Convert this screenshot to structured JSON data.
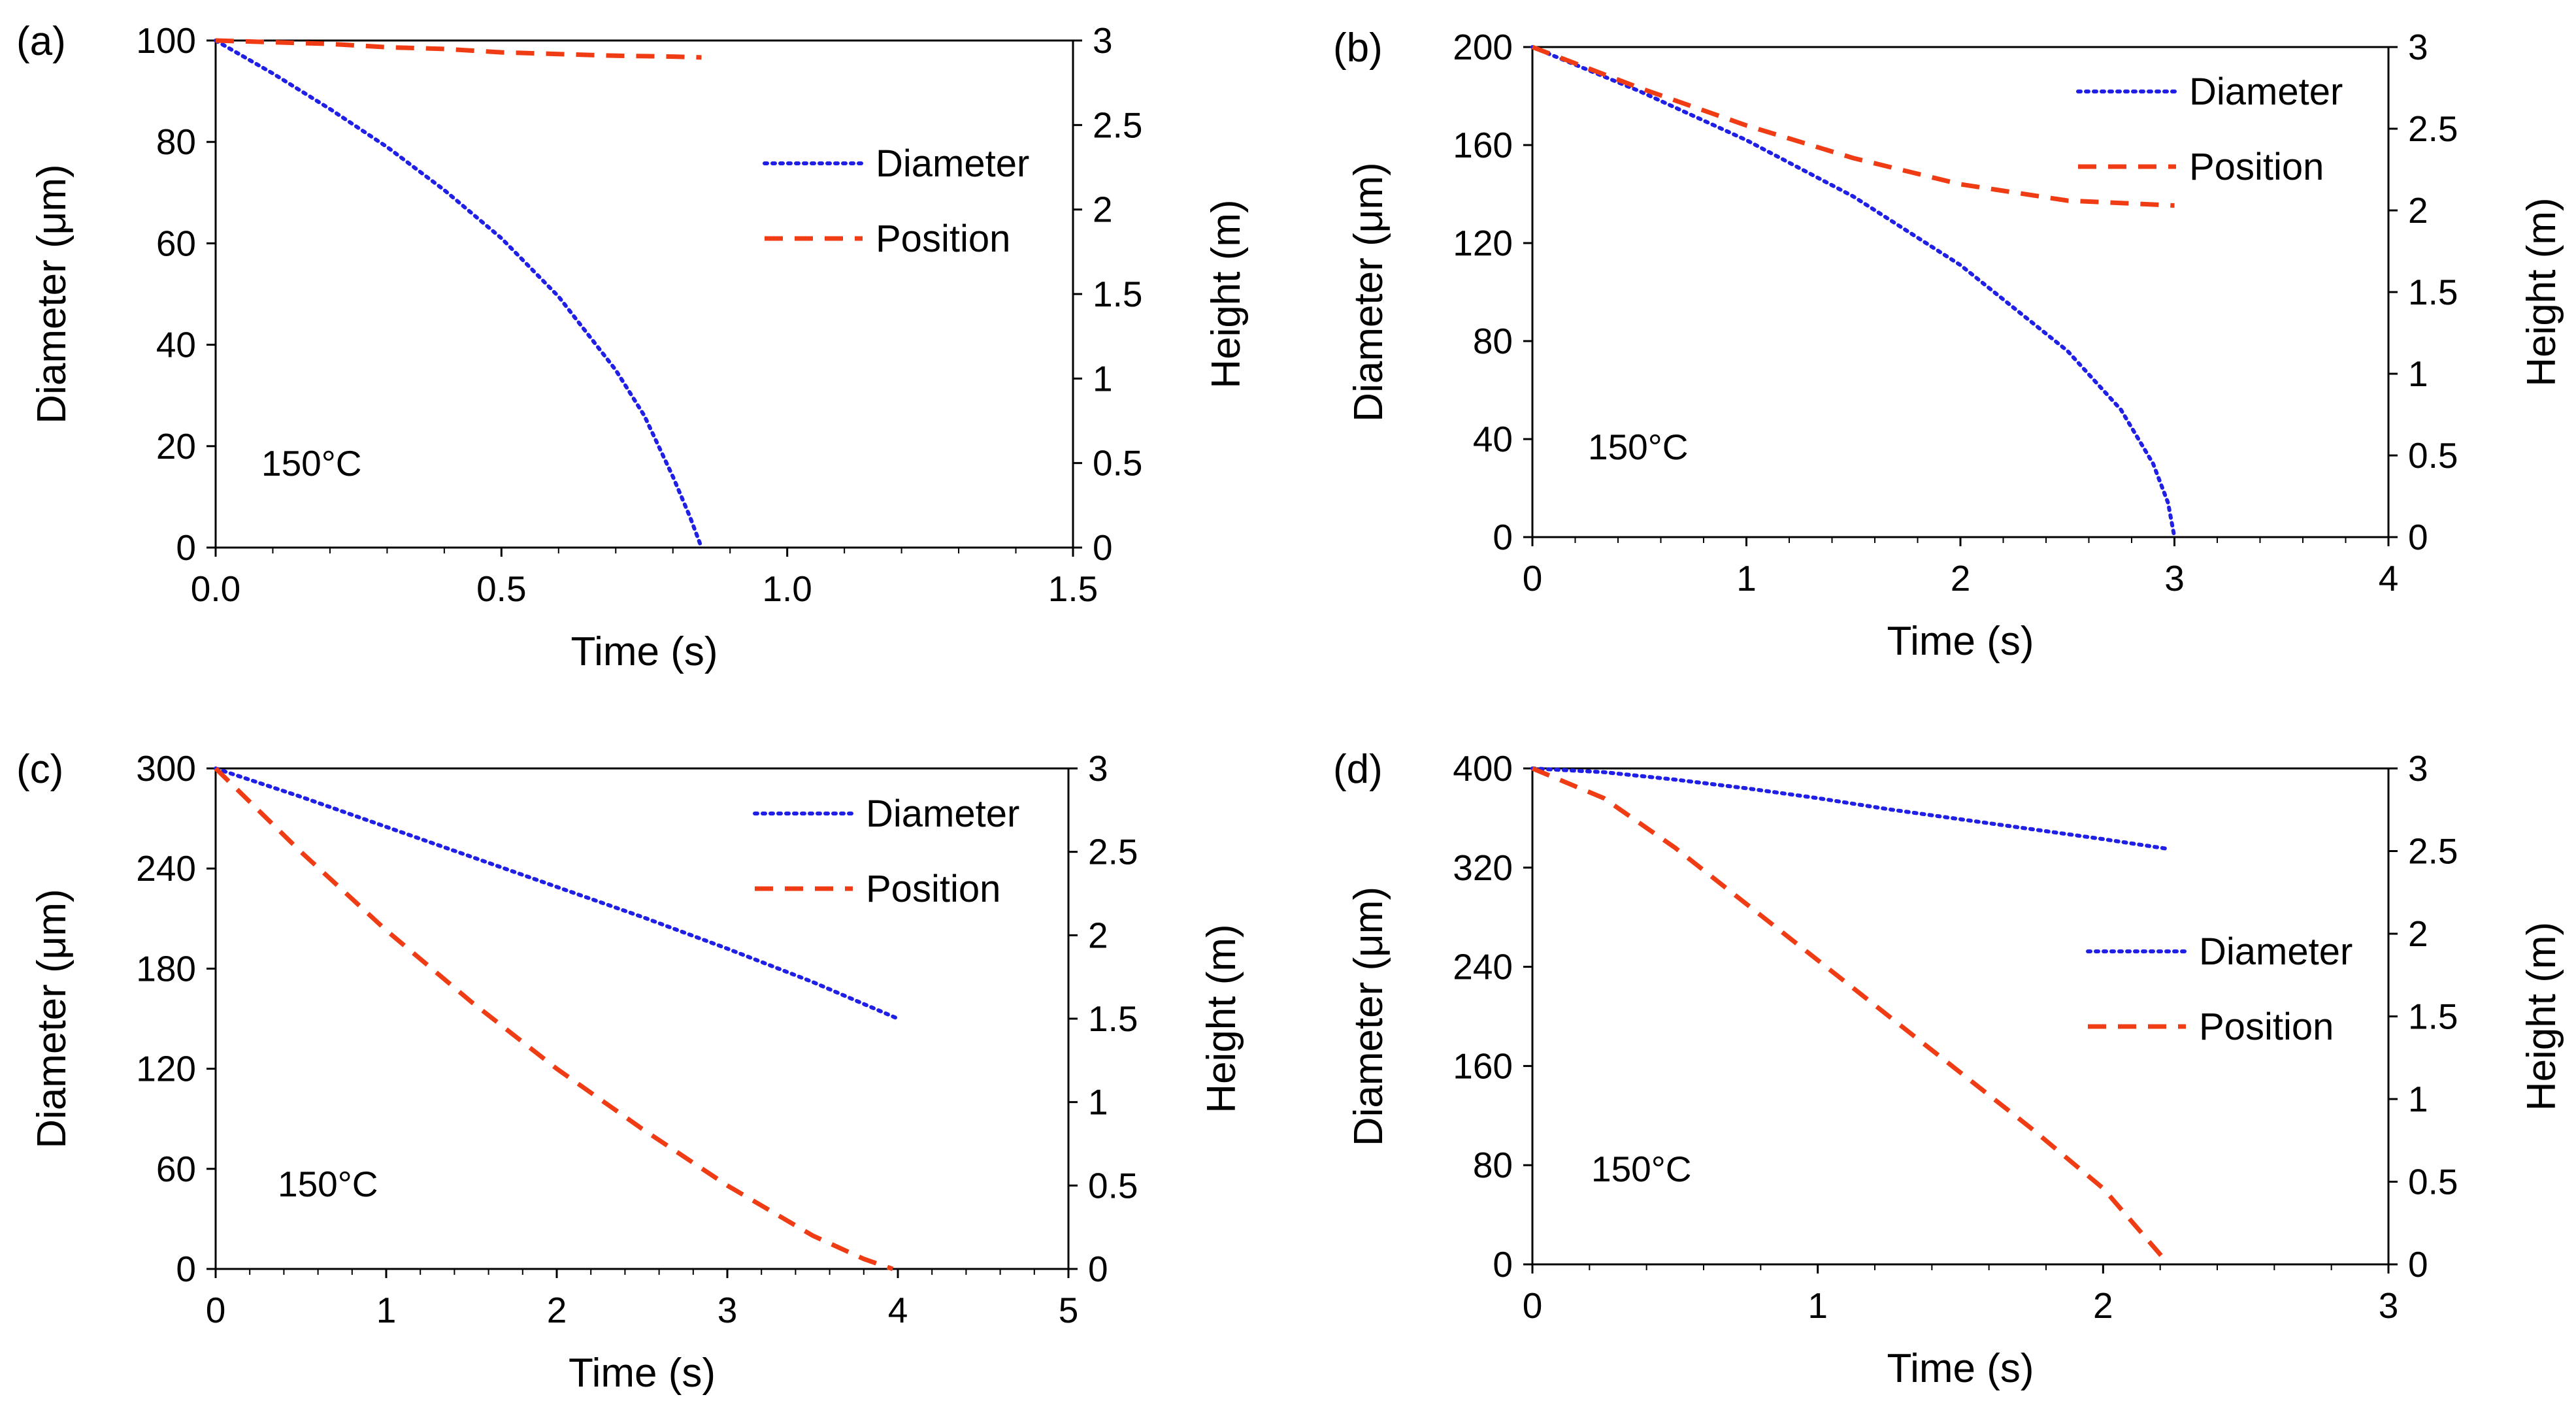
{
  "chart_data": [
    {
      "type": "line",
      "panel_label": "(a)",
      "annotation": "150°C",
      "xlabel": "Time (s)",
      "ylabel": "Diameter (μm)",
      "y2label": "Height (m)",
      "xlim": [
        0,
        1.5
      ],
      "ylim": [
        0,
        100
      ],
      "y2lim": [
        0,
        3
      ],
      "xticks": [
        "0.0",
        "0.5",
        "1.0",
        "1.5"
      ],
      "yticks": [
        "0",
        "20",
        "40",
        "60",
        "80",
        "100"
      ],
      "y2ticks": [
        "0",
        "0.5",
        "1",
        "1.5",
        "2",
        "2.5",
        "3"
      ],
      "legend": [
        "Diameter",
        "Position"
      ],
      "legend_position": "middle-right",
      "series": [
        {
          "name": "Diameter",
          "axis": "left",
          "color": "#1f1fe6",
          "style": "dotted",
          "x": [
            0,
            0.1,
            0.2,
            0.3,
            0.4,
            0.5,
            0.6,
            0.7,
            0.75,
            0.8,
            0.83,
            0.85
          ],
          "y": [
            100,
            93.5,
            86.5,
            79,
            70.5,
            61,
            49.5,
            35,
            26,
            14,
            6,
            0
          ]
        },
        {
          "name": "Position",
          "axis": "right",
          "color": "#f03c14",
          "style": "dashed",
          "x": [
            0,
            0.1,
            0.2,
            0.3,
            0.4,
            0.5,
            0.6,
            0.7,
            0.8,
            0.85
          ],
          "y": [
            3,
            2.99,
            2.98,
            2.96,
            2.95,
            2.93,
            2.92,
            2.91,
            2.905,
            2.9
          ]
        }
      ]
    },
    {
      "type": "line",
      "panel_label": "(b)",
      "annotation": "150°C",
      "xlabel": "Time (s)",
      "ylabel": "Diameter (μm)",
      "y2label": "Height (m)",
      "xlim": [
        0,
        4
      ],
      "ylim": [
        0,
        200
      ],
      "y2lim": [
        0,
        3
      ],
      "xticks": [
        "0",
        "1",
        "2",
        "3",
        "4"
      ],
      "yticks": [
        "0",
        "40",
        "80",
        "120",
        "160",
        "200"
      ],
      "y2ticks": [
        "0",
        "0.5",
        "1",
        "1.5",
        "2",
        "2.5",
        "3"
      ],
      "legend": [
        "Diameter",
        "Position"
      ],
      "legend_position": "top-right",
      "series": [
        {
          "name": "Diameter",
          "axis": "left",
          "color": "#1f1fe6",
          "style": "dotted",
          "x": [
            0,
            0.5,
            1,
            1.5,
            2,
            2.5,
            2.75,
            2.9,
            2.97,
            3
          ],
          "y": [
            200,
            182,
            162,
            139,
            111,
            76,
            52,
            30,
            14,
            0
          ]
        },
        {
          "name": "Position",
          "axis": "right",
          "color": "#f03c14",
          "style": "dashed",
          "x": [
            0,
            0.5,
            1,
            1.5,
            2,
            2.5,
            3
          ],
          "y": [
            3,
            2.75,
            2.52,
            2.32,
            2.16,
            2.06,
            2.03
          ]
        }
      ]
    },
    {
      "type": "line",
      "panel_label": "(c)",
      "annotation": "150°C",
      "xlabel": "Time (s)",
      "ylabel": "Diameter (μm)",
      "y2label": "Height (m)",
      "xlim": [
        0,
        5
      ],
      "ylim": [
        0,
        300
      ],
      "y2lim": [
        0,
        3
      ],
      "xticks": [
        "0",
        "1",
        "2",
        "3",
        "4",
        "5"
      ],
      "yticks": [
        "0",
        "60",
        "120",
        "180",
        "240",
        "300"
      ],
      "y2ticks": [
        "0",
        "0.5",
        "1",
        "1.5",
        "2",
        "2.5",
        "3"
      ],
      "legend": [
        "Diameter",
        "Position"
      ],
      "legend_position": "top-right",
      "series": [
        {
          "name": "Diameter",
          "axis": "left",
          "color": "#1f1fe6",
          "style": "dotted",
          "x": [
            0,
            0.5,
            1,
            1.5,
            2,
            2.5,
            3,
            3.5,
            4
          ],
          "y": [
            300,
            283,
            265,
            247,
            229,
            211,
            192,
            172,
            150
          ]
        },
        {
          "name": "Position",
          "axis": "right",
          "color": "#f03c14",
          "style": "dashed",
          "x": [
            0,
            0.5,
            1,
            1.5,
            2,
            2.5,
            3,
            3.5,
            3.8,
            3.97
          ],
          "y": [
            3,
            2.5,
            2.03,
            1.6,
            1.2,
            0.84,
            0.5,
            0.2,
            0.06,
            0
          ]
        }
      ]
    },
    {
      "type": "line",
      "panel_label": "(d)",
      "annotation": "150°C",
      "xlabel": "Time (s)",
      "ylabel": "Diameter (μm)",
      "y2label": "Height (m)",
      "xlim": [
        0,
        3
      ],
      "ylim": [
        0,
        400
      ],
      "y2lim": [
        0,
        3
      ],
      "xticks": [
        "0",
        "1",
        "2",
        "3"
      ],
      "yticks": [
        "0",
        "80",
        "160",
        "240",
        "320",
        "400"
      ],
      "y2ticks": [
        "0",
        "0.5",
        "1",
        "1.5",
        "2",
        "2.5",
        "3"
      ],
      "legend": [
        "Diameter",
        "Position"
      ],
      "legend_position": "middle-right",
      "series": [
        {
          "name": "Diameter",
          "axis": "left",
          "color": "#1f1fe6",
          "style": "dotted",
          "x": [
            0,
            0.25,
            0.5,
            0.75,
            1,
            1.25,
            1.5,
            1.75,
            2,
            2.23
          ],
          "y": [
            400,
            397,
            391,
            384,
            376,
            367,
            359,
            351,
            343,
            335
          ]
        },
        {
          "name": "Position",
          "axis": "right",
          "color": "#f03c14",
          "style": "dashed",
          "x": [
            0,
            0.25,
            0.5,
            0.75,
            1,
            1.25,
            1.5,
            1.75,
            2,
            2.23
          ],
          "y": [
            3,
            2.82,
            2.52,
            2.18,
            1.84,
            1.5,
            1.16,
            0.82,
            0.46,
            0
          ]
        }
      ]
    }
  ]
}
